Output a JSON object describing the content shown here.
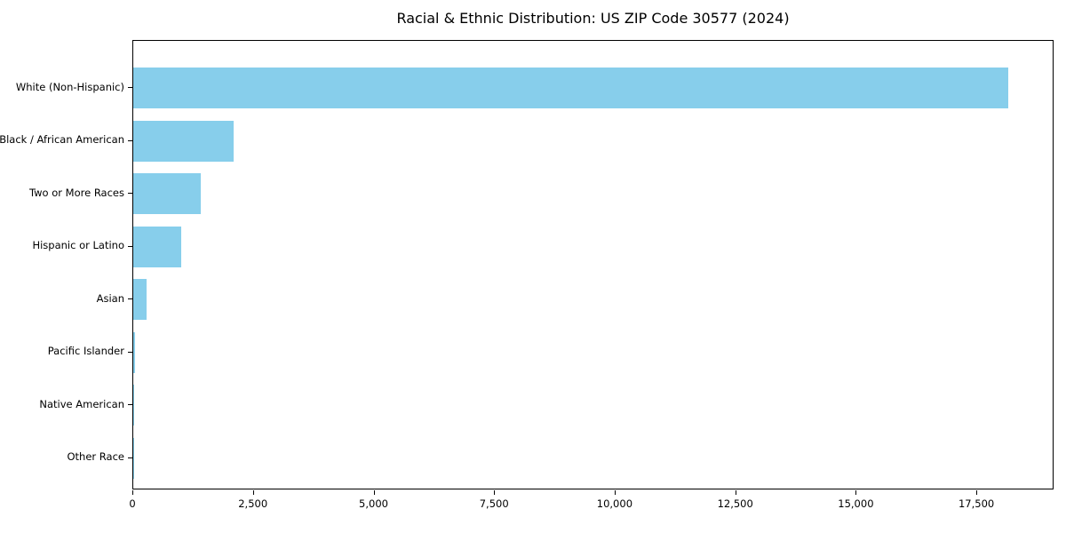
{
  "chart_data": {
    "type": "bar",
    "orientation": "horizontal",
    "title": "Racial & Ethnic Distribution: US ZIP Code 30577 (2024)",
    "xlabel": "",
    "ylabel": "",
    "categories": [
      "White (Non-Hispanic)",
      "Black / African American",
      "Two or More Races",
      "Hispanic or Latino",
      "Asian",
      "Pacific Islander",
      "Native American",
      "Other Race"
    ],
    "values": [
      18150,
      2080,
      1400,
      1000,
      275,
      45,
      15,
      10
    ],
    "xlim": [
      0,
      19100
    ],
    "x_ticks": [
      {
        "value": 0,
        "label": "0"
      },
      {
        "value": 2500,
        "label": "2,500"
      },
      {
        "value": 5000,
        "label": "5,000"
      },
      {
        "value": 7500,
        "label": "7,500"
      },
      {
        "value": 10000,
        "label": "10,000"
      },
      {
        "value": 12500,
        "label": "12,500"
      },
      {
        "value": 15000,
        "label": "15,000"
      },
      {
        "value": 17500,
        "label": "17,500"
      }
    ],
    "grid": false,
    "legend": null,
    "bar_color": "#87CEEB",
    "axis_color": "#000000",
    "background_color": "#ffffff"
  }
}
